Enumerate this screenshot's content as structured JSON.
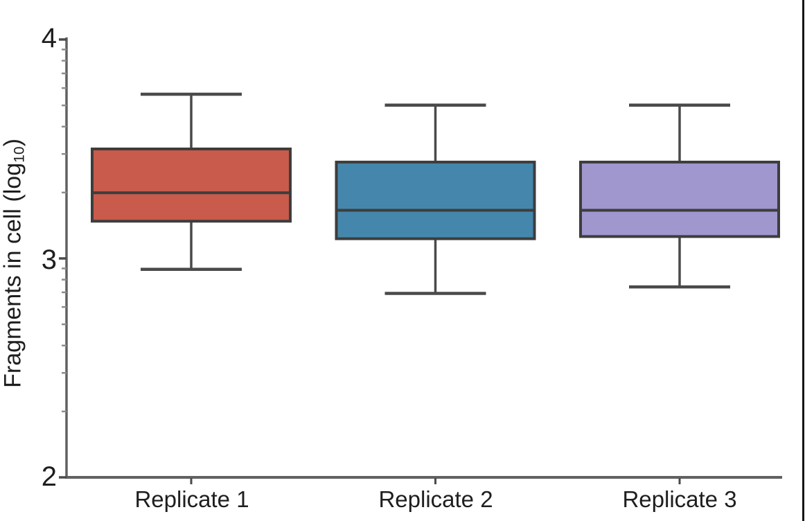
{
  "window": {
    "background": "#ffffff",
    "right_border_color": "#141414"
  },
  "chart_data": {
    "type": "boxplot",
    "title": "",
    "ylabel": "Fragments in cell (log10)",
    "ylabel_parts": {
      "prefix": "Fragments in cell (log",
      "subscript": "10",
      "suffix": ")"
    },
    "xlabel": "",
    "categories": [
      "Replicate 1",
      "Replicate 2",
      "Replicate 3"
    ],
    "yaxis": {
      "min": 2,
      "max": 4,
      "scale": "log (tick labels are log10 exponents)",
      "major_ticks": [
        4,
        3,
        2
      ],
      "major_tick_labels": [
        "4",
        "3",
        "2"
      ],
      "minor_ticks": "log10 subdivisions 2-9 within each decade",
      "grid": "off"
    },
    "legend": "none",
    "series": [
      {
        "name": "Replicate 1",
        "fill": "#C85B4B",
        "whisker_low": 2.95,
        "q1": 3.17,
        "median": 3.3,
        "q3": 3.5,
        "whisker_high": 3.75
      },
      {
        "name": "Replicate 2",
        "fill": "#4587AC",
        "whisker_low": 2.84,
        "q1": 3.09,
        "median": 3.22,
        "q3": 3.44,
        "whisker_high": 3.7
      },
      {
        "name": "Replicate 3",
        "fill": "#9F97CD",
        "whisker_low": 2.87,
        "q1": 3.1,
        "median": 3.22,
        "q3": 3.44,
        "whisker_high": 3.7
      }
    ],
    "style": {
      "box_border_color": "#3D3D3D",
      "median_color": "#3D3D3D",
      "whisker_color": "#4A4A4A",
      "axis_color": "#616161",
      "major_tick_color": "#4A4A4A",
      "minor_tick_color": "#8C8C8C",
      "text_color": "#1e1e1e"
    }
  }
}
